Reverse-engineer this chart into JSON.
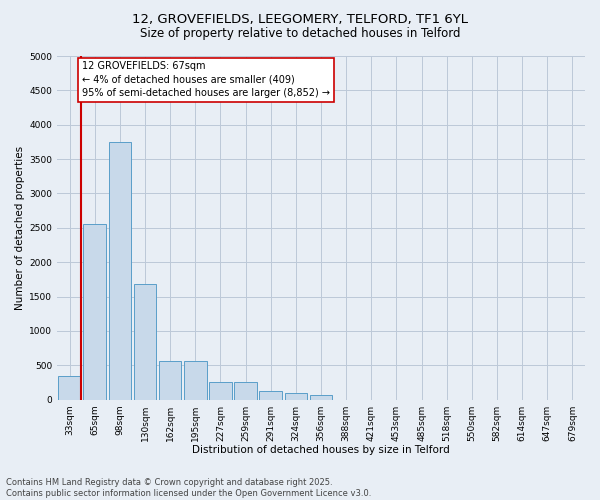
{
  "title_line1": "12, GROVEFIELDS, LEEGOMERY, TELFORD, TF1 6YL",
  "title_line2": "Size of property relative to detached houses in Telford",
  "xlabel": "Distribution of detached houses by size in Telford",
  "ylabel": "Number of detached properties",
  "categories": [
    "33sqm",
    "65sqm",
    "98sqm",
    "130sqm",
    "162sqm",
    "195sqm",
    "227sqm",
    "259sqm",
    "291sqm",
    "324sqm",
    "356sqm",
    "388sqm",
    "421sqm",
    "453sqm",
    "485sqm",
    "518sqm",
    "550sqm",
    "582sqm",
    "614sqm",
    "647sqm",
    "679sqm"
  ],
  "values": [
    350,
    2550,
    3750,
    1680,
    560,
    560,
    250,
    250,
    120,
    100,
    60,
    0,
    0,
    0,
    0,
    0,
    0,
    0,
    0,
    0,
    0
  ],
  "bar_color": "#c8d9ea",
  "bar_edge_color": "#5a9ec9",
  "vline_color": "#cc0000",
  "annotation_text": "12 GROVEFIELDS: 67sqm\n← 4% of detached houses are smaller (409)\n95% of semi-detached houses are larger (8,852) →",
  "annotation_box_color": "#ffffff",
  "annotation_box_edge_color": "#cc0000",
  "ylim": [
    0,
    5000
  ],
  "yticks": [
    0,
    500,
    1000,
    1500,
    2000,
    2500,
    3000,
    3500,
    4000,
    4500,
    5000
  ],
  "grid_color": "#bcc8d8",
  "background_color": "#e8eef5",
  "footer_line1": "Contains HM Land Registry data © Crown copyright and database right 2025.",
  "footer_line2": "Contains public sector information licensed under the Open Government Licence v3.0.",
  "title_fontsize": 9.5,
  "subtitle_fontsize": 8.5,
  "axis_label_fontsize": 7.5,
  "tick_fontsize": 6.5,
  "annotation_fontsize": 7,
  "footer_fontsize": 6
}
